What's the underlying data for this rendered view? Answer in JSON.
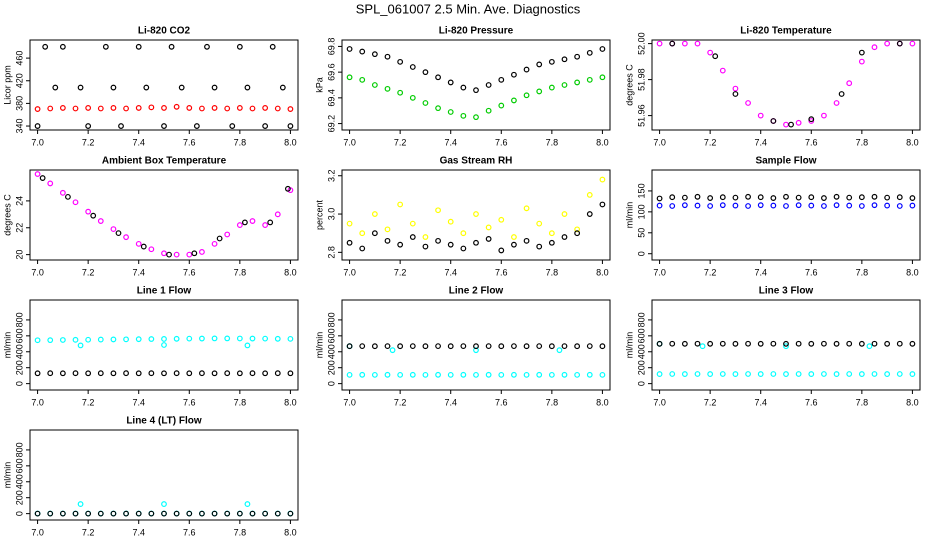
{
  "title": "SPL_061007  2.5 Min. Ave. Diagnostics",
  "chart_data": [
    {
      "type": "scatter",
      "title": "Li-820 CO2",
      "ylabel": "Licor ppm",
      "xlim": [
        6.97,
        8.03
      ],
      "ylim": [
        333,
        492
      ],
      "xticks": [
        {
          "value": 7,
          "label": "7.0"
        },
        7.2,
        7.4,
        7.6,
        7.8,
        {
          "value": 8,
          "label": "8.0"
        }
      ],
      "yticks": [
        340,
        380,
        420,
        460
      ],
      "x": [
        7.0,
        7.05,
        7.1,
        7.15,
        7.2,
        7.25,
        7.3,
        7.35,
        7.4,
        7.45,
        7.5,
        7.55,
        7.6,
        7.65,
        7.7,
        7.75,
        7.8,
        7.85,
        7.9,
        7.95,
        8.0
      ],
      "series": [
        {
          "color": "#ff0000",
          "values": [
            370,
            371,
            372,
            371,
            372,
            371,
            372,
            371,
            372,
            373,
            372,
            374,
            372,
            371,
            372,
            371,
            372,
            371,
            372,
            371,
            370
          ]
        },
        {
          "color": "#000000",
          "x": [
            7.0,
            7.03,
            7.07,
            7.1,
            7.17,
            7.2,
            7.27,
            7.3,
            7.33,
            7.4,
            7.43,
            7.5,
            7.53,
            7.57,
            7.63,
            7.67,
            7.7,
            7.77,
            7.8,
            7.83,
            7.9,
            7.93,
            7.97,
            8.0
          ],
          "values": [
            340,
            480,
            408,
            480,
            408,
            340,
            480,
            408,
            340,
            480,
            408,
            340,
            480,
            408,
            340,
            480,
            408,
            340,
            480,
            408,
            340,
            480,
            408,
            340
          ]
        }
      ]
    },
    {
      "type": "scatter",
      "title": "Li-820 Pressure",
      "ylabel": "kPa",
      "xlim": [
        6.97,
        8.03
      ],
      "ylim": [
        69.15,
        69.85
      ],
      "xticks": [
        {
          "value": 7,
          "label": "7.0"
        },
        7.2,
        7.4,
        7.6,
        7.8,
        {
          "value": 8,
          "label": "8.0"
        }
      ],
      "yticks": [
        69.2,
        69.4,
        69.6,
        69.8
      ],
      "x": [
        7.0,
        7.05,
        7.1,
        7.15,
        7.2,
        7.25,
        7.3,
        7.35,
        7.4,
        7.45,
        7.5,
        7.55,
        7.6,
        7.65,
        7.7,
        7.75,
        7.8,
        7.85,
        7.9,
        7.95,
        8.0
      ],
      "series": [
        {
          "color": "#00cc00",
          "values": [
            69.56,
            69.54,
            69.5,
            69.47,
            69.44,
            69.4,
            69.36,
            69.32,
            69.29,
            69.26,
            69.25,
            69.3,
            69.34,
            69.38,
            69.42,
            69.45,
            69.48,
            69.5,
            69.52,
            69.54,
            69.56
          ]
        },
        {
          "color": "#000000",
          "values": [
            69.78,
            69.76,
            69.74,
            69.72,
            69.68,
            69.64,
            69.6,
            69.56,
            69.52,
            69.48,
            69.46,
            69.5,
            69.54,
            69.58,
            69.62,
            69.66,
            69.68,
            69.7,
            69.72,
            69.75,
            69.78
          ]
        }
      ]
    },
    {
      "type": "scatter",
      "title": "Li-820 Temperature",
      "ylabel": "degrees C",
      "xlim": [
        6.97,
        8.03
      ],
      "ylim": [
        51.952,
        52.002
      ],
      "xticks": [
        {
          "value": 7,
          "label": "7.0"
        },
        7.2,
        7.4,
        7.6,
        7.8,
        {
          "value": 8,
          "label": "8.0"
        }
      ],
      "yticks": [
        51.96,
        51.98,
        {
          "value": 52,
          "label": "52.00"
        }
      ],
      "x": [
        7.0,
        7.05,
        7.1,
        7.15,
        7.2,
        7.25,
        7.3,
        7.35,
        7.4,
        7.45,
        7.5,
        7.55,
        7.6,
        7.65,
        7.7,
        7.75,
        7.8,
        7.85,
        7.9,
        7.95,
        8.0
      ],
      "series": [
        {
          "color": "#ff00ff",
          "values": [
            52.0,
            52.0,
            52.0,
            52.0,
            51.995,
            51.985,
            51.975,
            51.967,
            51.96,
            51.957,
            51.955,
            51.956,
            51.957,
            51.96,
            51.967,
            51.978,
            51.99,
            51.998,
            52.0,
            52.0,
            52.0
          ]
        },
        {
          "color": "#000000",
          "x": [
            7.05,
            7.22,
            7.3,
            7.45,
            7.52,
            7.6,
            7.72,
            7.8,
            7.95
          ],
          "values": [
            52.0,
            51.993,
            51.972,
            51.957,
            51.955,
            51.958,
            51.972,
            51.995,
            52.0
          ]
        }
      ]
    },
    {
      "type": "scatter",
      "title": "Ambient Box Temperature",
      "ylabel": "degrees C",
      "xlim": [
        6.97,
        8.03
      ],
      "ylim": [
        19.6,
        26.3
      ],
      "xticks": [
        {
          "value": 7,
          "label": "7.0"
        },
        7.2,
        7.4,
        7.6,
        7.8,
        {
          "value": 8,
          "label": "8.0"
        }
      ],
      "yticks": [
        20,
        22,
        24
      ],
      "x": [
        7.0,
        7.05,
        7.1,
        7.15,
        7.2,
        7.25,
        7.3,
        7.35,
        7.4,
        7.45,
        7.5,
        7.55,
        7.6,
        7.65,
        7.7,
        7.75,
        7.8,
        7.85,
        7.9,
        7.95,
        8.0
      ],
      "series": [
        {
          "color": "#ff00ff",
          "values": [
            26.0,
            25.3,
            24.6,
            23.9,
            23.2,
            22.5,
            21.9,
            21.3,
            20.8,
            20.4,
            20.1,
            20.0,
            20.0,
            20.2,
            20.8,
            21.5,
            22.2,
            22.5,
            22.2,
            23.0,
            24.8
          ]
        },
        {
          "color": "#000000",
          "x": [
            7.02,
            7.12,
            7.22,
            7.32,
            7.42,
            7.52,
            7.62,
            7.72,
            7.82,
            7.92,
            7.99
          ],
          "values": [
            25.7,
            24.3,
            22.9,
            21.6,
            20.6,
            20.0,
            20.1,
            21.2,
            22.4,
            22.4,
            24.9
          ]
        }
      ]
    },
    {
      "type": "scatter",
      "title": "Gas Stream RH",
      "ylabel": "percent",
      "xlim": [
        6.97,
        8.03
      ],
      "ylim": [
        2.76,
        3.23
      ],
      "xticks": [
        {
          "value": 7,
          "label": "7.0"
        },
        7.2,
        7.4,
        7.6,
        7.8,
        {
          "value": 8,
          "label": "8.0"
        }
      ],
      "yticks": [
        2.8,
        {
          "value": 3,
          "label": "3.0"
        },
        3.2
      ],
      "x": [
        7.0,
        7.05,
        7.1,
        7.15,
        7.2,
        7.25,
        7.3,
        7.35,
        7.4,
        7.45,
        7.5,
        7.55,
        7.6,
        7.65,
        7.7,
        7.75,
        7.8,
        7.85,
        7.9,
        7.95,
        8.0
      ],
      "series": [
        {
          "color": "#ffff00",
          "values": [
            2.95,
            2.9,
            3.0,
            2.92,
            3.05,
            2.95,
            2.88,
            3.02,
            2.96,
            2.9,
            3.0,
            2.93,
            2.97,
            2.88,
            3.03,
            2.95,
            2.9,
            3.0,
            2.92,
            3.1,
            3.18
          ]
        },
        {
          "color": "#000000",
          "values": [
            2.85,
            2.82,
            2.9,
            2.86,
            2.84,
            2.88,
            2.83,
            2.86,
            2.84,
            2.82,
            2.85,
            2.87,
            2.81,
            2.84,
            2.86,
            2.83,
            2.85,
            2.88,
            2.9,
            3.0,
            3.05
          ]
        }
      ]
    },
    {
      "type": "scatter",
      "title": "Sample Flow",
      "ylabel": "ml/min",
      "xlim": [
        6.97,
        8.03
      ],
      "ylim": [
        -15,
        200
      ],
      "xticks": [
        {
          "value": 7,
          "label": "7.0"
        },
        7.2,
        7.4,
        7.6,
        7.8,
        {
          "value": 8,
          "label": "8.0"
        }
      ],
      "yticks": [
        0,
        50,
        100,
        150
      ],
      "x": [
        7.0,
        7.05,
        7.1,
        7.15,
        7.2,
        7.25,
        7.3,
        7.35,
        7.4,
        7.45,
        7.5,
        7.55,
        7.6,
        7.65,
        7.7,
        7.75,
        7.8,
        7.85,
        7.9,
        7.95,
        8.0
      ],
      "series": [
        {
          "color": "#0000ff",
          "values": [
            115,
            114,
            116,
            115,
            114,
            116,
            115,
            114,
            116,
            115,
            114,
            116,
            115,
            114,
            116,
            115,
            114,
            116,
            115,
            114,
            115
          ]
        },
        {
          "color": "#000000",
          "values": [
            132,
            135,
            134,
            136,
            133,
            135,
            134,
            136,
            135,
            133,
            136,
            134,
            135,
            133,
            136,
            134,
            135,
            136,
            134,
            135,
            133
          ]
        }
      ]
    },
    {
      "type": "scatter",
      "title": "Line 1 Flow",
      "ylabel": "ml/min",
      "xlim": [
        6.97,
        8.03
      ],
      "ylim": [
        -80,
        1050
      ],
      "xticks": [
        {
          "value": 7,
          "label": "7.0"
        },
        7.2,
        7.4,
        7.6,
        7.8,
        {
          "value": 8,
          "label": "8.0"
        }
      ],
      "yticks": [
        0,
        200,
        400,
        600,
        800
      ],
      "x": [
        7.0,
        7.05,
        7.1,
        7.15,
        7.2,
        7.25,
        7.3,
        7.35,
        7.4,
        7.45,
        7.5,
        7.55,
        7.6,
        7.65,
        7.7,
        7.75,
        7.8,
        7.85,
        7.9,
        7.95,
        8.0
      ],
      "series": [
        {
          "color": "#00ffff",
          "values": [
            545,
            546,
            548,
            550,
            551,
            553,
            555,
            556,
            558,
            560,
            561,
            563,
            565,
            566,
            568,
            568,
            567,
            566,
            565,
            563,
            562
          ]
        },
        {
          "color": "#00ffff",
          "x": [
            7.17,
            7.5,
            7.83
          ],
          "values": [
            480,
            485,
            480
          ]
        },
        {
          "color": "#000000",
          "values": [
            130,
            131,
            130,
            131,
            130,
            131,
            130,
            131,
            130,
            131,
            130,
            131,
            130,
            131,
            130,
            131,
            130,
            131,
            130,
            131,
            130
          ]
        }
      ]
    },
    {
      "type": "scatter",
      "title": "Line 2 Flow",
      "ylabel": "ml/min",
      "xlim": [
        6.97,
        8.03
      ],
      "ylim": [
        -80,
        1050
      ],
      "xticks": [
        {
          "value": 7,
          "label": "7.0"
        },
        7.2,
        7.4,
        7.6,
        7.8,
        {
          "value": 8,
          "label": "8.0"
        }
      ],
      "yticks": [
        0,
        200,
        400,
        600,
        800
      ],
      "x": [
        7.0,
        7.05,
        7.1,
        7.15,
        7.2,
        7.25,
        7.3,
        7.35,
        7.4,
        7.45,
        7.5,
        7.55,
        7.6,
        7.65,
        7.7,
        7.75,
        7.8,
        7.85,
        7.9,
        7.95,
        8.0
      ],
      "series": [
        {
          "color": "#00ffff",
          "values": [
            110,
            111,
            110,
            111,
            110,
            111,
            110,
            111,
            110,
            111,
            110,
            111,
            110,
            111,
            110,
            111,
            110,
            111,
            110,
            111,
            110
          ]
        },
        {
          "color": "#00ffff",
          "x": [
            7.0,
            7.17,
            7.5,
            7.83
          ],
          "values": [
            470,
            420,
            420,
            420
          ]
        },
        {
          "color": "#000000",
          "values": [
            470,
            471,
            470,
            471,
            470,
            471,
            470,
            471,
            470,
            471,
            470,
            471,
            470,
            471,
            470,
            471,
            470,
            471,
            470,
            471,
            470
          ]
        }
      ]
    },
    {
      "type": "scatter",
      "title": "Line 3 Flow",
      "ylabel": "ml/min",
      "xlim": [
        6.97,
        8.03
      ],
      "ylim": [
        -80,
        1050
      ],
      "xticks": [
        {
          "value": 7,
          "label": "7.0"
        },
        7.2,
        7.4,
        7.6,
        7.8,
        {
          "value": 8,
          "label": "8.0"
        }
      ],
      "yticks": [
        0,
        200,
        400,
        600,
        800
      ],
      "x": [
        7.0,
        7.05,
        7.1,
        7.15,
        7.2,
        7.25,
        7.3,
        7.35,
        7.4,
        7.45,
        7.5,
        7.55,
        7.6,
        7.65,
        7.7,
        7.75,
        7.8,
        7.85,
        7.9,
        7.95,
        8.0
      ],
      "series": [
        {
          "color": "#00ffff",
          "values": [
            120,
            121,
            120,
            121,
            120,
            121,
            120,
            121,
            120,
            121,
            120,
            121,
            120,
            121,
            120,
            121,
            120,
            121,
            120,
            121,
            120
          ]
        },
        {
          "color": "#00ffff",
          "x": [
            7.0,
            7.17,
            7.5,
            7.83
          ],
          "values": [
            500,
            470,
            470,
            470
          ]
        },
        {
          "color": "#000000",
          "values": [
            500,
            501,
            500,
            501,
            500,
            501,
            500,
            501,
            500,
            501,
            500,
            501,
            500,
            501,
            500,
            501,
            500,
            501,
            500,
            501,
            500
          ]
        }
      ]
    },
    {
      "type": "scatter",
      "title": "Line 4 (LT) Flow",
      "ylabel": "ml/min",
      "xlim": [
        6.97,
        8.03
      ],
      "ylim": [
        -80,
        1050
      ],
      "xticks": [
        {
          "value": 7,
          "label": "7.0"
        },
        7.2,
        7.4,
        7.6,
        7.8,
        {
          "value": 8,
          "label": "8.0"
        }
      ],
      "yticks": [
        0,
        200,
        400,
        600,
        800
      ],
      "x": [
        7.0,
        7.05,
        7.1,
        7.15,
        7.2,
        7.25,
        7.3,
        7.35,
        7.4,
        7.45,
        7.5,
        7.55,
        7.6,
        7.65,
        7.7,
        7.75,
        7.8,
        7.85,
        7.9,
        7.95,
        8.0
      ],
      "series": [
        {
          "color": "#00ffff",
          "values": [
            2,
            2,
            2,
            2,
            2,
            2,
            2,
            2,
            2,
            2,
            2,
            2,
            2,
            2,
            2,
            2,
            2,
            2,
            2,
            2,
            2
          ]
        },
        {
          "color": "#00ffff",
          "x": [
            7.17,
            7.5,
            7.83
          ],
          "values": [
            120,
            120,
            120
          ]
        },
        {
          "color": "#000000",
          "values": [
            0,
            0,
            0,
            0,
            0,
            0,
            0,
            0,
            0,
            0,
            0,
            0,
            0,
            0,
            0,
            0,
            0,
            0,
            0,
            0,
            0
          ]
        }
      ]
    }
  ]
}
